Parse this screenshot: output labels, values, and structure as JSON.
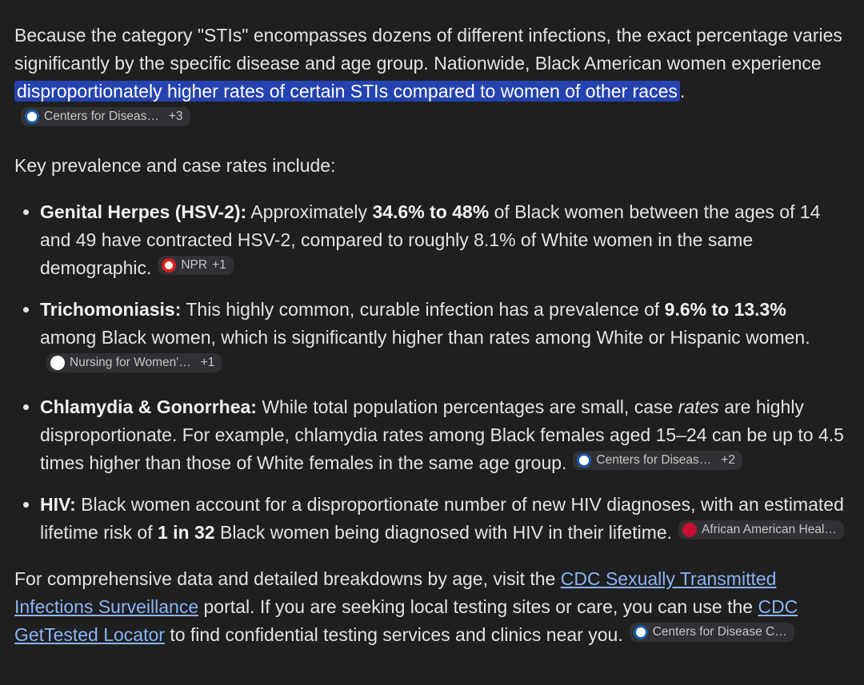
{
  "intro": {
    "text": "Because the category \"STIs\" encompasses dozens of different infections, the exact percentage varies significantly by the specific disease and age group. Nationwide, Black American women experience ",
    "highlight": "disproportionately higher rates of certain STIs compared to women of other races",
    "end": ".",
    "citation": {
      "source": "Centers for Diseas…",
      "more": "+3"
    }
  },
  "lead": "Key prevalence and case rates include:",
  "items": [
    {
      "segments": [
        "Genital Herpes (HSV-2):",
        " Approximately ",
        "34.6% to 48%",
        " of Black women between the ages of 14 and 49 have contracted HSV-2, compared to roughly 8.1% of White women in the same demographic."
      ],
      "citation": {
        "source": "NPR",
        "more": "+1"
      }
    },
    {
      "segments": [
        "Trichomoniasis:",
        " This highly common, curable infection has a prevalence of ",
        "9.6% to 13.3%",
        " among Black women, which is significantly higher than rates among White or Hispanic women."
      ],
      "citation": {
        "source": "Nursing for Women'…",
        "more": "+1"
      }
    },
    {
      "segments": [
        "Chlamydia & Gonorrhea:",
        " While total population percentages are small, case ",
        "rates",
        " are highly disproportionate. For example, chlamydia rates among Black females aged 15–24 can be up to 4.5 times higher than those of White females in the same age group."
      ],
      "citation": {
        "source": "Centers for Diseas…",
        "more": "+2"
      }
    },
    {
      "segments": [
        "HIV:",
        " Black women account for a disproportionate number of new HIV diagnoses, with an estimated lifetime risk of ",
        "1 in 32",
        " Black women being diagnosed with HIV in their lifetime."
      ],
      "citation": {
        "source": "African American Heal…"
      }
    }
  ],
  "outro": {
    "segments": [
      "For comprehensive data and detailed breakdowns by age, visit the ",
      "CDC Sexually Transmitted Infections Surveillance",
      " portal. If you are seeking local testing sites or care, you can use the ",
      "CDC GetTested Locator",
      " to find confidential testing services and clinics near you."
    ],
    "citation": {
      "source": "Centers for Disease C…"
    }
  }
}
